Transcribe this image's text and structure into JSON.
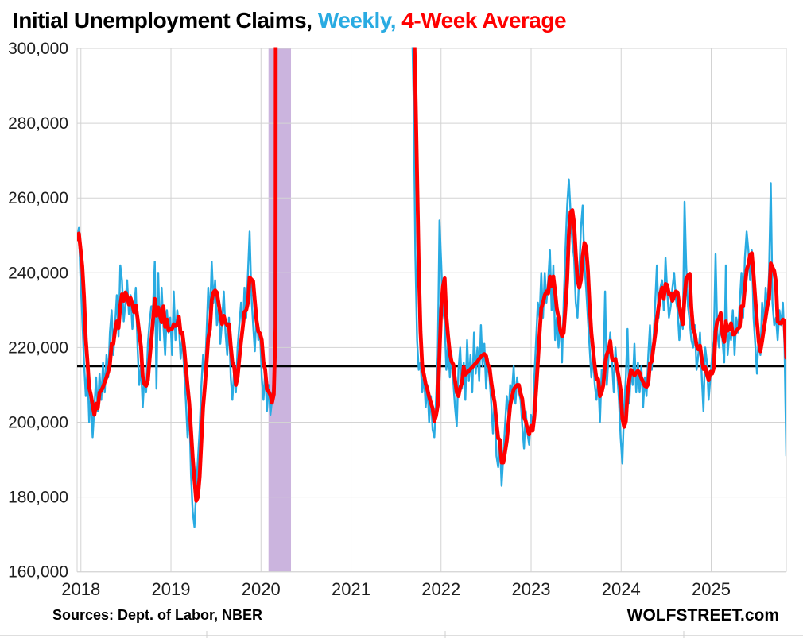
{
  "title": {
    "part1": "Initial Unemployment Claims, ",
    "part2": "Weekly, ",
    "part3": "4-Week Average"
  },
  "footer": {
    "sources": "Sources: Dept. of Labor, NBER",
    "branding": "WOLFSTREET.com"
  },
  "colors": {
    "weekly_blue": "#29abe2",
    "average_red": "#ff0000",
    "reference_black": "#000000",
    "recession_band_purple": "#cbb4de",
    "gridline_gray": "#d3d3d3",
    "text_dark": "#1f1f1f"
  },
  "chart_data": {
    "type": "line",
    "title": "Initial Unemployment Claims, Weekly, 4-Week Average",
    "unit": "initial unemployment claims per week, values stored in thousands",
    "grid": true,
    "legend_position": "in-title (colored words)",
    "x_axis": {
      "cadence": "weekly",
      "start_date": "2017-12-16",
      "end_date": "2025-11-15",
      "tick_labels": [
        "2018",
        "2019",
        "2020",
        "2021",
        "2022",
        "2023",
        "2024",
        "2025"
      ]
    },
    "y_axis": {
      "min_thousands": 160,
      "max_thousands": 300,
      "tick_values_thousands": [
        160,
        180,
        200,
        220,
        240,
        260,
        280,
        300
      ],
      "tick_labels": [
        "160,000",
        "180,000",
        "200,000",
        "220,000",
        "240,000",
        "260,000",
        "280,000",
        "300,000"
      ]
    },
    "reference_line": {
      "value_thousands": 215
    },
    "recession_band": {
      "label": "NBER recession",
      "start": "2020-02",
      "end": "2020-04"
    },
    "series": [
      {
        "name": "Weekly",
        "color": "#29abe2",
        "values_thousands": [
          249,
          252,
          238,
          228,
          216,
          207,
          214,
          200,
          208,
          196,
          204,
          212,
          203,
          213,
          206,
          216,
          208,
          218,
          212,
          224,
          230,
          218,
          226,
          234,
          223,
          242,
          238,
          227,
          232,
          238,
          229,
          234,
          225,
          230,
          236,
          220,
          210,
          215,
          204,
          212,
          208,
          221,
          227,
          231,
          231,
          243,
          209,
          240,
          222,
          236,
          226,
          218,
          230,
          224,
          228,
          218,
          235,
          222,
          230,
          226,
          217,
          223,
          214,
          206,
          196,
          204,
          186,
          176,
          172,
          182,
          190,
          198,
          210,
          218,
          212,
          224,
          236,
          228,
          243,
          232,
          238,
          226,
          231,
          221,
          227,
          235,
          224,
          218,
          228,
          212,
          206,
          214,
          208,
          220,
          226,
          232,
          224,
          236,
          228,
          240,
          251,
          234,
          226,
          219,
          230,
          222,
          224,
          212,
          206,
          214,
          203,
          210,
          202,
          206,
          212,
          282,
          3307,
          6867,
          6600,
          5300,
          4400,
          3800,
          3200,
          2700,
          2300,
          2000,
          1800,
          1600,
          1500,
          1400,
          1350,
          1300,
          1250,
          1300,
          1200,
          1150,
          1100,
          1000,
          950,
          900,
          870,
          860,
          840,
          820,
          790,
          780,
          750,
          730,
          720,
          710,
          730,
          700,
          710,
          750,
          800,
          780,
          760,
          770,
          900,
          870,
          845,
          820,
          795,
          775,
          755,
          735,
          715,
          695,
          675,
          655,
          635,
          615,
          595,
          575,
          555,
          540,
          525,
          510,
          495,
          480,
          465,
          450,
          438,
          426,
          414,
          402,
          390,
          378,
          366,
          355,
          345,
          336,
          328,
          320,
          310,
          287,
          245,
          222,
          214,
          216,
          208,
          213,
          204,
          210,
          200,
          207,
          198,
          196,
          206,
          218,
          254,
          243,
          230,
          227,
          214,
          221,
          212,
          218,
          211,
          204,
          199,
          214,
          220,
          209,
          216,
          206,
          222,
          211,
          218,
          208,
          224,
          213,
          220,
          211,
          226,
          215,
          221,
          209,
          217,
          212,
          205,
          197,
          207,
          191,
          188,
          195,
          183,
          191,
          199,
          207,
          202,
          210,
          208,
          215,
          205,
          212,
          208,
          206,
          199,
          193,
          203,
          197,
          194,
          202,
          198,
          212,
          222,
          232,
          228,
          240,
          228,
          240,
          232,
          238,
          246,
          230,
          242,
          222,
          228,
          220,
          228,
          216,
          232,
          246,
          258,
          265,
          256,
          248,
          244,
          232,
          228,
          240,
          252,
          258,
          242,
          236,
          228,
          220,
          212,
          218,
          210,
          206,
          212,
          200,
          214,
          214,
          235,
          210,
          218,
          224,
          216,
          208,
          220,
          213,
          206,
          196,
          189,
          204,
          212,
          225,
          205,
          214,
          210,
          221,
          208,
          216,
          208,
          215,
          204,
          212,
          207,
          218,
          226,
          214,
          222,
          232,
          242,
          228,
          236,
          238,
          230,
          244,
          235,
          228,
          231,
          236,
          240,
          233,
          230,
          222,
          228,
          225,
          259,
          242,
          231,
          227,
          222,
          220,
          226,
          214,
          218,
          224,
          212,
          203,
          220,
          216,
          206,
          212,
          218,
          222,
          245,
          224,
          220,
          228,
          222,
          216,
          242,
          218,
          224,
          222,
          230,
          218,
          228,
          224,
          232,
          240,
          228,
          244,
          251,
          246,
          238,
          246,
          228,
          221,
          213,
          224,
          218,
          232,
          226,
          236,
          230,
          240,
          264,
          232,
          226,
          228,
          222,
          230,
          226,
          232,
          220,
          191
        ]
      },
      {
        "name": "4-Week Average",
        "color": "#ff0000",
        "derived": "4-week trailing average of the Weekly series"
      }
    ]
  }
}
